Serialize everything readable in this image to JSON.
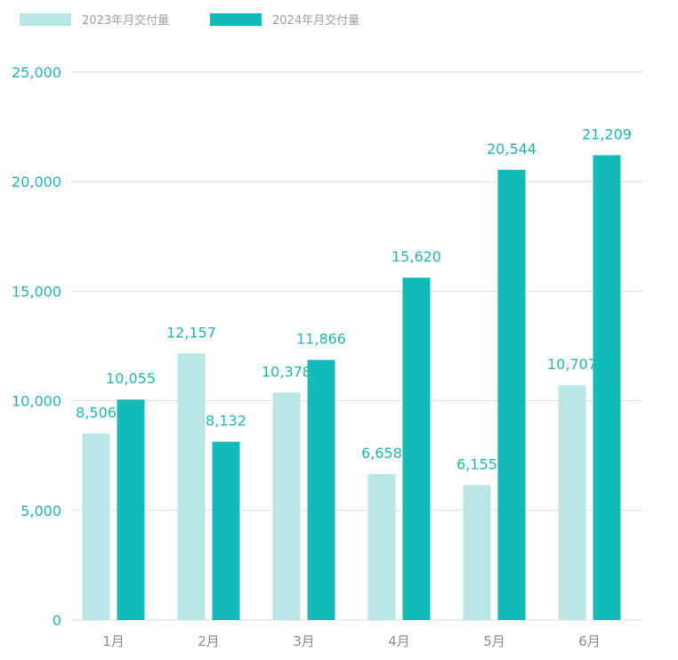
{
  "chart_data": {
    "type": "bar",
    "categories": [
      "1月",
      "2月",
      "3月",
      "4月",
      "5月",
      "6月"
    ],
    "series": [
      {
        "name": "2023年月交付量",
        "values": [
          8506,
          12157,
          10378,
          6658,
          6155,
          10707
        ],
        "color": "#b9e6e6"
      },
      {
        "name": "2024年月交付量",
        "values": [
          10055,
          8132,
          11866,
          15620,
          20544,
          21209
        ],
        "color": "#12baba"
      }
    ],
    "data_labels": [
      [
        "8,506",
        "12,157",
        "10,378",
        "6,658",
        "6,155",
        "10,707"
      ],
      [
        "10,055",
        "8,132",
        "11,866",
        "15,620",
        "20,544",
        "21,209"
      ]
    ],
    "yticks": [
      0,
      5000,
      10000,
      15000,
      20000,
      25000
    ],
    "ytick_labels": [
      "0",
      "5,000",
      "10,000",
      "15,000",
      "20,000",
      "25,000"
    ],
    "ylim": [
      0,
      25000
    ],
    "grid": true,
    "legend_position": "top-left",
    "title": "",
    "xlabel": "",
    "ylabel": ""
  }
}
